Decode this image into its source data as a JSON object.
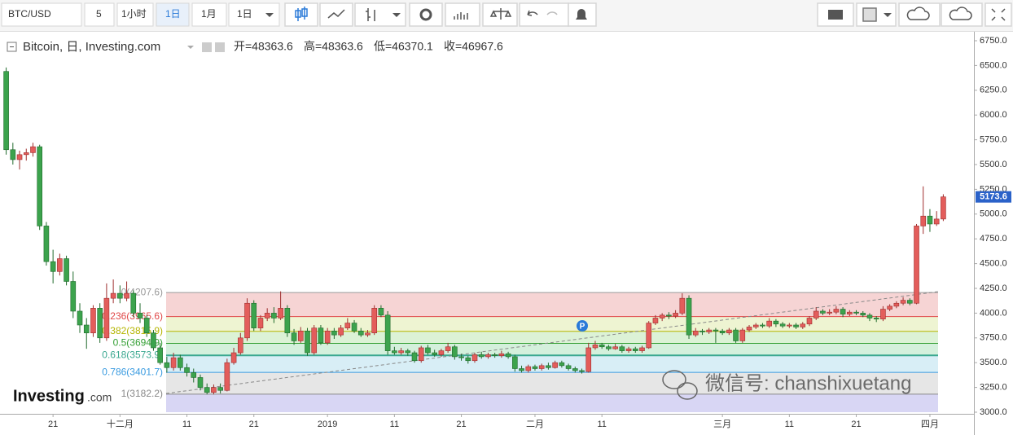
{
  "toolbar": {
    "symbol": "BTC/USD",
    "interval": "5",
    "unit_hour": "1小时",
    "day": "1日",
    "month": "1月",
    "day2": "1日"
  },
  "chart_data": {
    "type": "candlestick",
    "title": "Bitcoin, 日, Investing.com",
    "ohlc_legend": [
      "开=48363.6",
      "高=48363.6",
      "低=46370.1",
      "收=46967.6"
    ],
    "up_color": "#e35d5b",
    "down_color": "#3ca34d",
    "categories": [
      null,
      null,
      null,
      null,
      null,
      null,
      null,
      "21",
      null,
      null,
      null,
      null,
      null,
      null,
      null,
      null,
      null,
      "十二月",
      null,
      null,
      null,
      null,
      null,
      null,
      null,
      null,
      null,
      "11",
      null,
      null,
      null,
      null,
      null,
      null,
      null,
      null,
      null,
      "21",
      null,
      null,
      null,
      null,
      null,
      null,
      null,
      null,
      null,
      null,
      "2019",
      null,
      null,
      null,
      null,
      null,
      null,
      null,
      null,
      null,
      "11",
      null,
      null,
      null,
      null,
      null,
      null,
      null,
      null,
      null,
      "21",
      null,
      null,
      null,
      null,
      null,
      null,
      null,
      null,
      null,
      null,
      "二月",
      null,
      null,
      null,
      null,
      null,
      null,
      null,
      null,
      null,
      "11",
      null,
      null,
      null,
      null,
      null,
      null,
      null,
      null,
      null,
      null,
      null,
      null,
      null,
      null,
      null,
      null,
      null,
      "三月",
      null,
      null,
      null,
      null,
      null,
      null,
      null,
      null,
      null,
      "11",
      null,
      null,
      null,
      null,
      null,
      null,
      null,
      null,
      null,
      "21",
      null,
      null,
      null,
      null,
      null,
      null,
      null,
      null,
      null,
      null,
      "四月",
      null,
      null
    ],
    "candles": [
      [
        6440,
        6480,
        5600,
        5650
      ],
      [
        5650,
        5720,
        5500,
        5550
      ],
      [
        5550,
        5640,
        5450,
        5600
      ],
      [
        5600,
        5660,
        5540,
        5620
      ],
      [
        5620,
        5720,
        5580,
        5680
      ],
      [
        5680,
        5700,
        4840,
        4880
      ],
      [
        4880,
        4920,
        4480,
        4520
      ],
      [
        4520,
        4640,
        4300,
        4420
      ],
      [
        4420,
        4600,
        4380,
        4550
      ],
      [
        4550,
        4580,
        4280,
        4320
      ],
      [
        4320,
        4420,
        3950,
        4020
      ],
      [
        4020,
        4100,
        3800,
        3880
      ],
      [
        3880,
        3950,
        3640,
        3800
      ],
      [
        3800,
        4080,
        3760,
        4050
      ],
      [
        4050,
        4100,
        3700,
        3750
      ],
      [
        3750,
        4300,
        3720,
        4150
      ],
      [
        4150,
        4340,
        4100,
        4200
      ],
      [
        4200,
        4280,
        4100,
        4150
      ],
      [
        4150,
        4320,
        4120,
        4200
      ],
      [
        4200,
        4230,
        3960,
        4000
      ],
      [
        4000,
        4100,
        3900,
        3950
      ],
      [
        3950,
        3980,
        3760,
        3800
      ],
      [
        3800,
        3830,
        3620,
        3650
      ],
      [
        3650,
        3700,
        3480,
        3500
      ],
      [
        3500,
        3560,
        3400,
        3450
      ],
      [
        3450,
        3600,
        3420,
        3550
      ],
      [
        3550,
        3580,
        3420,
        3450
      ],
      [
        3450,
        3490,
        3360,
        3400
      ],
      [
        3400,
        3440,
        3300,
        3350
      ],
      [
        3350,
        3380,
        3220,
        3250
      ],
      [
        3250,
        3290,
        3180,
        3200
      ],
      [
        3200,
        3280,
        3180,
        3250
      ],
      [
        3250,
        3290,
        3190,
        3220
      ],
      [
        3220,
        3540,
        3210,
        3500
      ],
      [
        3500,
        3650,
        3480,
        3600
      ],
      [
        3600,
        3800,
        3580,
        3750
      ],
      [
        3750,
        4150,
        3720,
        4100
      ],
      [
        4100,
        4130,
        3820,
        3850
      ],
      [
        3850,
        3980,
        3820,
        3950
      ],
      [
        3950,
        4050,
        3920,
        4000
      ],
      [
        4000,
        4060,
        3900,
        3950
      ],
      [
        3950,
        4220,
        3930,
        4050
      ],
      [
        4050,
        4080,
        3760,
        3800
      ],
      [
        3800,
        3840,
        3680,
        3720
      ],
      [
        3720,
        3860,
        3700,
        3820
      ],
      [
        3820,
        3850,
        3570,
        3600
      ],
      [
        3600,
        3880,
        3580,
        3850
      ],
      [
        3850,
        3880,
        3680,
        3700
      ],
      [
        3700,
        3850,
        3680,
        3820
      ],
      [
        3820,
        3850,
        3740,
        3780
      ],
      [
        3780,
        3880,
        3760,
        3850
      ],
      [
        3850,
        3950,
        3830,
        3900
      ],
      [
        3900,
        3930,
        3800,
        3820
      ],
      [
        3820,
        3850,
        3760,
        3780
      ],
      [
        3780,
        3830,
        3760,
        3800
      ],
      [
        3800,
        4080,
        3780,
        4050
      ],
      [
        4050,
        4080,
        3960,
        3980
      ],
      [
        3980,
        4020,
        3580,
        3620
      ],
      [
        3620,
        3660,
        3580,
        3600
      ],
      [
        3600,
        3650,
        3580,
        3620
      ],
      [
        3620,
        3640,
        3570,
        3600
      ],
      [
        3600,
        3620,
        3500,
        3520
      ],
      [
        3520,
        3670,
        3500,
        3650
      ],
      [
        3650,
        3680,
        3580,
        3600
      ],
      [
        3600,
        3630,
        3560,
        3580
      ],
      [
        3580,
        3640,
        3560,
        3620
      ],
      [
        3620,
        3700,
        3600,
        3660
      ],
      [
        3660,
        3680,
        3530,
        3560
      ],
      [
        3560,
        3590,
        3520,
        3550
      ],
      [
        3550,
        3570,
        3490,
        3520
      ],
      [
        3520,
        3600,
        3500,
        3580
      ],
      [
        3580,
        3610,
        3540,
        3560
      ],
      [
        3560,
        3600,
        3540,
        3580
      ],
      [
        3580,
        3600,
        3550,
        3570
      ],
      [
        3570,
        3620,
        3550,
        3590
      ],
      [
        3590,
        3610,
        3540,
        3560
      ],
      [
        3560,
        3580,
        3410,
        3440
      ],
      [
        3440,
        3470,
        3400,
        3420
      ],
      [
        3420,
        3480,
        3400,
        3460
      ],
      [
        3460,
        3480,
        3420,
        3440
      ],
      [
        3440,
        3490,
        3420,
        3470
      ],
      [
        3470,
        3500,
        3430,
        3450
      ],
      [
        3450,
        3520,
        3440,
        3500
      ],
      [
        3500,
        3520,
        3450,
        3470
      ],
      [
        3470,
        3490,
        3420,
        3440
      ],
      [
        3440,
        3460,
        3400,
        3420
      ],
      [
        3420,
        3440,
        3390,
        3410
      ],
      [
        3410,
        3700,
        3400,
        3650
      ],
      [
        3650,
        3720,
        3630,
        3680
      ],
      [
        3680,
        3700,
        3640,
        3660
      ],
      [
        3660,
        3680,
        3620,
        3640
      ],
      [
        3640,
        3690,
        3630,
        3660
      ],
      [
        3660,
        3680,
        3600,
        3620
      ],
      [
        3620,
        3660,
        3600,
        3640
      ],
      [
        3640,
        3660,
        3600,
        3620
      ],
      [
        3620,
        3670,
        3600,
        3650
      ],
      [
        3650,
        3920,
        3640,
        3900
      ],
      [
        3900,
        3980,
        3880,
        3950
      ],
      [
        3950,
        4000,
        3920,
        3980
      ],
      [
        3980,
        4010,
        3940,
        3970
      ],
      [
        3970,
        4030,
        3950,
        4000
      ],
      [
        4000,
        4200,
        3980,
        4150
      ],
      [
        4150,
        4180,
        3740,
        3780
      ],
      [
        3780,
        3850,
        3760,
        3820
      ],
      [
        3820,
        3840,
        3780,
        3810
      ],
      [
        3810,
        3850,
        3790,
        3830
      ],
      [
        3830,
        3850,
        3700,
        3820
      ],
      [
        3820,
        3840,
        3780,
        3800
      ],
      [
        3800,
        3850,
        3780,
        3830
      ],
      [
        3830,
        3850,
        3700,
        3720
      ],
      [
        3720,
        3850,
        3700,
        3830
      ],
      [
        3830,
        3880,
        3810,
        3860
      ],
      [
        3860,
        3900,
        3840,
        3880
      ],
      [
        3880,
        3900,
        3850,
        3870
      ],
      [
        3870,
        3950,
        3850,
        3920
      ],
      [
        3920,
        3940,
        3860,
        3890
      ],
      [
        3890,
        3910,
        3850,
        3870
      ],
      [
        3870,
        3900,
        3850,
        3880
      ],
      [
        3880,
        3900,
        3840,
        3860
      ],
      [
        3860,
        3910,
        3840,
        3890
      ],
      [
        3890,
        3970,
        3870,
        3950
      ],
      [
        3950,
        4060,
        3930,
        4020
      ],
      [
        4020,
        4040,
        3980,
        4000
      ],
      [
        4000,
        4040,
        3980,
        4010
      ],
      [
        4010,
        4070,
        3990,
        4040
      ],
      [
        4040,
        4060,
        3960,
        3990
      ],
      [
        3990,
        4030,
        3970,
        4010
      ],
      [
        4010,
        4030,
        3980,
        4000
      ],
      [
        4000,
        4020,
        3960,
        3980
      ],
      [
        3980,
        4000,
        3920,
        3950
      ],
      [
        3950,
        3970,
        3910,
        3940
      ],
      [
        3940,
        4070,
        3920,
        4040
      ],
      [
        4040,
        4090,
        4020,
        4070
      ],
      [
        4070,
        4120,
        4050,
        4100
      ],
      [
        4100,
        4160,
        4080,
        4130
      ],
      [
        4130,
        4150,
        4080,
        4100
      ],
      [
        4100,
        4900,
        4090,
        4880
      ],
      [
        4880,
        5280,
        4800,
        4980
      ],
      [
        4980,
        5050,
        4820,
        4900
      ],
      [
        4900,
        5030,
        4880,
        4950
      ],
      [
        4950,
        5200,
        4930,
        5173.6
      ]
    ],
    "ylim": [
      3000,
      6750
    ],
    "yticks": [
      {
        "value": 3000,
        "label": "3000.0"
      },
      {
        "value": 3250,
        "label": "3250.0"
      },
      {
        "value": 3500,
        "label": "3500.0"
      },
      {
        "value": 3750,
        "label": "3750.0"
      },
      {
        "value": 4000,
        "label": "4000.0"
      },
      {
        "value": 4250,
        "label": "4250.0"
      },
      {
        "value": 4500,
        "label": "4500.0"
      },
      {
        "value": 4750,
        "label": "4750.0"
      },
      {
        "value": 5000,
        "label": "5000.0"
      },
      {
        "value": 5250,
        "label": "5250.0"
      },
      {
        "value": 5500,
        "label": "5500.0"
      },
      {
        "value": 5750,
        "label": "5750.0"
      },
      {
        "value": 6000,
        "label": "6000.0"
      },
      {
        "value": 6250,
        "label": "6250.0"
      },
      {
        "value": 6500,
        "label": "6500.0"
      },
      {
        "value": 6750,
        "label": "6750.0"
      }
    ],
    "fib_levels": [
      {
        "label": "0(4207.6)",
        "value": 4207.6,
        "color": "#9a9a9a",
        "fill": "#f6d4d4"
      },
      {
        "label": "0.236(3965.6)",
        "value": 3965.6,
        "color": "#e04848",
        "fill": "#eef4d2"
      },
      {
        "label": "0.382(3815.9)",
        "value": 3815.9,
        "color": "#b5b500",
        "fill": "#dcf2d6"
      },
      {
        "label": "0.5(3694.9)",
        "value": 3694.9,
        "color": "#35a035",
        "fill": "#d4f0dc"
      },
      {
        "label": "0.618(3573.9)",
        "value": 3573.9,
        "color": "#3aa890",
        "fill": "#d8eef6"
      },
      {
        "label": "0.786(3401.7)",
        "value": 3401.7,
        "color": "#3a9be0",
        "fill": "#e6e6e6"
      },
      {
        "label": "1(3182.2)",
        "value": 3182.2,
        "color": "#888888",
        "fill": "#d8d6f4"
      }
    ],
    "marker": "P",
    "logo": "Investing",
    "logo_suffix": ".com",
    "watermark": "微信号: chanshixuetang"
  }
}
